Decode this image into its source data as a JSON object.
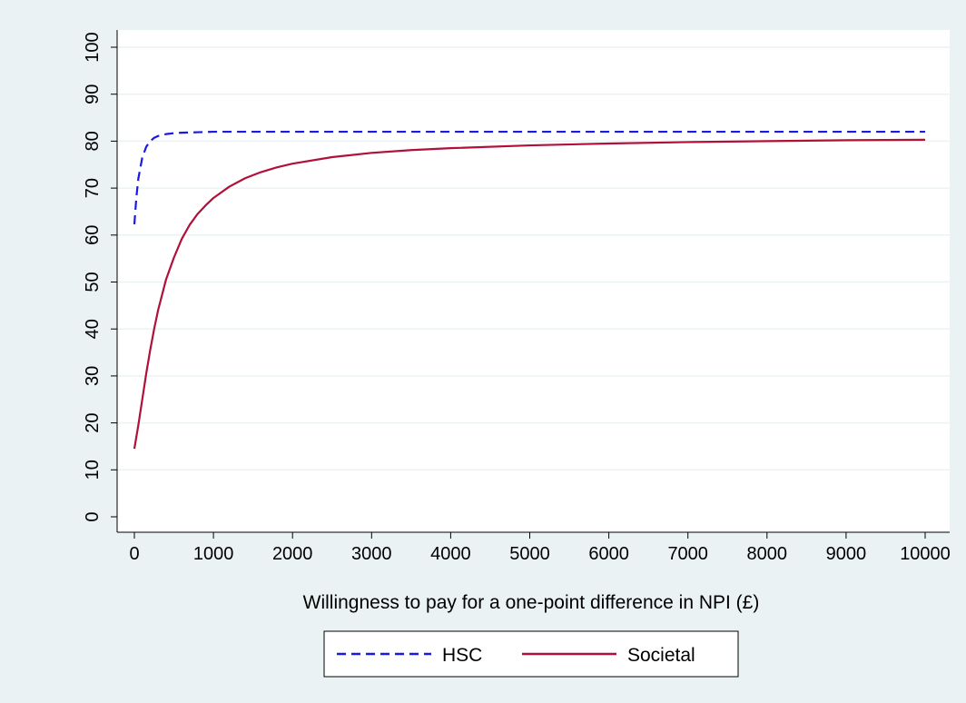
{
  "colors": {
    "outer_background": "#EAF2F3",
    "plot_background": "#FFFFFF",
    "gridline": "#EAF2F3",
    "axis": "#000000",
    "hsc": "#1A1AE6",
    "societal": "#B0103A"
  },
  "chart_data": {
    "type": "line",
    "title": "",
    "xlabel": "Willingness to pay for a one-point difference in NPI (£)",
    "ylabel": "",
    "xlim": [
      0,
      10000
    ],
    "ylim": [
      0,
      100
    ],
    "xticks": [
      "0",
      "1000",
      "2000",
      "3000",
      "4000",
      "5000",
      "6000",
      "7000",
      "8000",
      "9000",
      "10000"
    ],
    "yticks": [
      "0",
      "10",
      "20",
      "30",
      "40",
      "50",
      "60",
      "70",
      "80",
      "90",
      "100"
    ],
    "grid": true,
    "legend_position": "bottom",
    "series": [
      {
        "name": "HSC",
        "style": "dashed",
        "x": [
          0,
          25,
          50,
          100,
          150,
          200,
          250,
          300,
          400,
          500,
          600,
          800,
          1000,
          2000,
          3000,
          5000,
          7000,
          10000
        ],
        "y": [
          62.3,
          68,
          72,
          76.5,
          78.8,
          80,
          80.7,
          81.1,
          81.5,
          81.7,
          81.8,
          81.9,
          82,
          82,
          82,
          82,
          82,
          82
        ]
      },
      {
        "name": "Societal",
        "style": "solid",
        "x": [
          0,
          50,
          100,
          150,
          200,
          250,
          300,
          400,
          500,
          600,
          700,
          800,
          900,
          1000,
          1200,
          1400,
          1600,
          1800,
          2000,
          2500,
          3000,
          3500,
          4000,
          5000,
          6000,
          7000,
          8000,
          9000,
          10000
        ],
        "y": [
          14.5,
          19.5,
          25,
          30.5,
          35.5,
          40,
          44,
          50.5,
          55.2,
          59.2,
          62.2,
          64.5,
          66.3,
          67.9,
          70.3,
          72.1,
          73.4,
          74.4,
          75.2,
          76.6,
          77.5,
          78.1,
          78.5,
          79.1,
          79.5,
          79.8,
          80,
          80.2,
          80.3
        ]
      }
    ]
  }
}
